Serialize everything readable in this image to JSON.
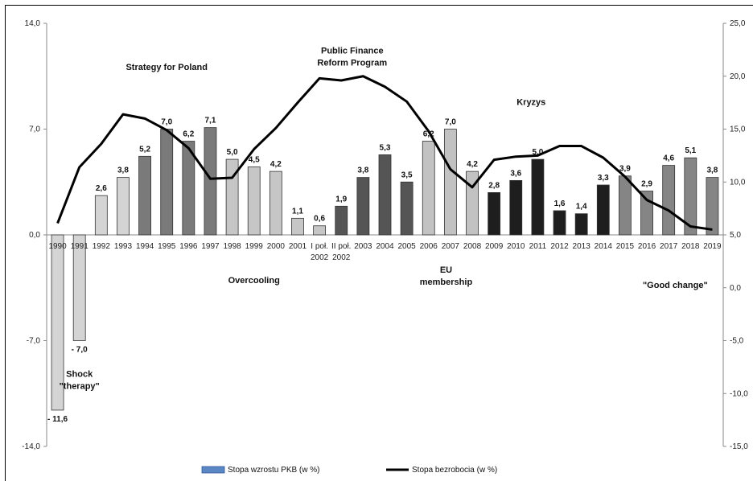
{
  "chart_data": {
    "type": "bar",
    "categories": [
      "1990",
      "1991",
      "1992",
      "1993",
      "1994",
      "1995",
      "1996",
      "1997",
      "1998",
      "1999",
      "2000",
      "2001",
      "I poł. 2002",
      "II poł. 2002",
      "2003",
      "2004",
      "2005",
      "2006",
      "2007",
      "2008",
      "2009",
      "2010",
      "2011",
      "2012",
      "2013",
      "2014",
      "2015",
      "2016",
      "2017",
      "2018",
      "2019"
    ],
    "series": [
      {
        "name": "Stopa wzrostu PKB (w %)",
        "type": "bar",
        "axis": "left",
        "values": [
          -11.6,
          -7.0,
          2.6,
          3.8,
          5.2,
          7.0,
          6.2,
          7.1,
          5.0,
          4.5,
          4.2,
          1.1,
          0.6,
          1.9,
          3.8,
          5.3,
          3.5,
          6.2,
          7.0,
          4.2,
          2.8,
          3.6,
          5.0,
          1.6,
          1.4,
          3.3,
          3.9,
          2.9,
          4.6,
          5.1,
          3.8
        ],
        "labels": [
          "- 11,6",
          "- 7,0",
          "2,6",
          "3,8",
          "5,2",
          "7,0",
          "6,2",
          "7,1",
          "5,0",
          "4,5",
          "4,2",
          "1,1",
          "0,6",
          "1,9",
          "3,8",
          "5,3",
          "3,5",
          "6,2",
          "7,0",
          "4,2",
          "2,8",
          "3,6",
          "5,0",
          "1,6",
          "1,4",
          "3,3",
          "3,9",
          "2,9",
          "4,6",
          "5,1",
          "3,8"
        ],
        "colors": [
          "#d4d4d4",
          "#d4d4d4",
          "#d4d4d4",
          "#d4d4d4",
          "#7a7a7a",
          "#7a7a7a",
          "#7a7a7a",
          "#7a7a7a",
          "#c6c6c6",
          "#c6c6c6",
          "#c6c6c6",
          "#c6c6c6",
          "#c6c6c6",
          "#555555",
          "#555555",
          "#555555",
          "#555555",
          "#c2c2c2",
          "#c2c2c2",
          "#c2c2c2",
          "#1e1e1e",
          "#1e1e1e",
          "#1e1e1e",
          "#1e1e1e",
          "#1e1e1e",
          "#1e1e1e",
          "#858585",
          "#858585",
          "#858585",
          "#858585",
          "#858585"
        ]
      },
      {
        "name": "Stopa bezrobocia (w %)",
        "type": "line",
        "axis": "right",
        "color": "#000000",
        "values": [
          6.1,
          11.4,
          13.6,
          16.4,
          16.0,
          14.9,
          13.2,
          10.3,
          10.4,
          13.1,
          15.1,
          17.5,
          19.8,
          19.6,
          20.0,
          19.0,
          17.6,
          14.8,
          11.2,
          9.5,
          12.1,
          12.4,
          12.5,
          13.4,
          13.4,
          12.3,
          10.5,
          8.3,
          7.3,
          5.8,
          5.5
        ]
      }
    ],
    "y_left": {
      "lim": [
        -14,
        14
      ],
      "ticks": [
        -14,
        -7,
        0,
        7,
        14
      ],
      "tick_labels": [
        "-14,0",
        "-7,0",
        "0,0",
        "7,0",
        "14,0"
      ]
    },
    "y_right": {
      "lim": [
        -15,
        25
      ],
      "ticks": [
        -15,
        -10,
        -5,
        0,
        5,
        10,
        15,
        20,
        25
      ],
      "tick_labels": [
        "-15,0",
        "-10,0",
        "-5,0",
        "0,0",
        "5,0",
        "10,0",
        "15,0",
        "20,0",
        "25,0"
      ]
    },
    "annotations": [
      {
        "lines": [
          "Strategy for Poland"
        ],
        "at_category": 5.5,
        "at_value": 10.9
      },
      {
        "lines": [
          "Public Finance",
          "Reform Program"
        ],
        "at_category": 14.0,
        "at_value": 12.0
      },
      {
        "lines": [
          "Kryzys"
        ],
        "at_category": 22.2,
        "at_value": 8.6
      },
      {
        "lines": [
          "Overcooling"
        ],
        "at_category": 9.5,
        "at_value": -3.2
      },
      {
        "lines": [
          "EU",
          "membership"
        ],
        "at_category": 18.3,
        "at_value": -2.5
      },
      {
        "lines": [
          "\"Good change\""
        ],
        "at_category": 28.8,
        "at_value": -3.5
      },
      {
        "lines": [
          "Shock",
          "\"therapy\""
        ],
        "at_category": 1.5,
        "at_value": -9.4
      }
    ],
    "legend_position": "bottom",
    "grid": false
  }
}
